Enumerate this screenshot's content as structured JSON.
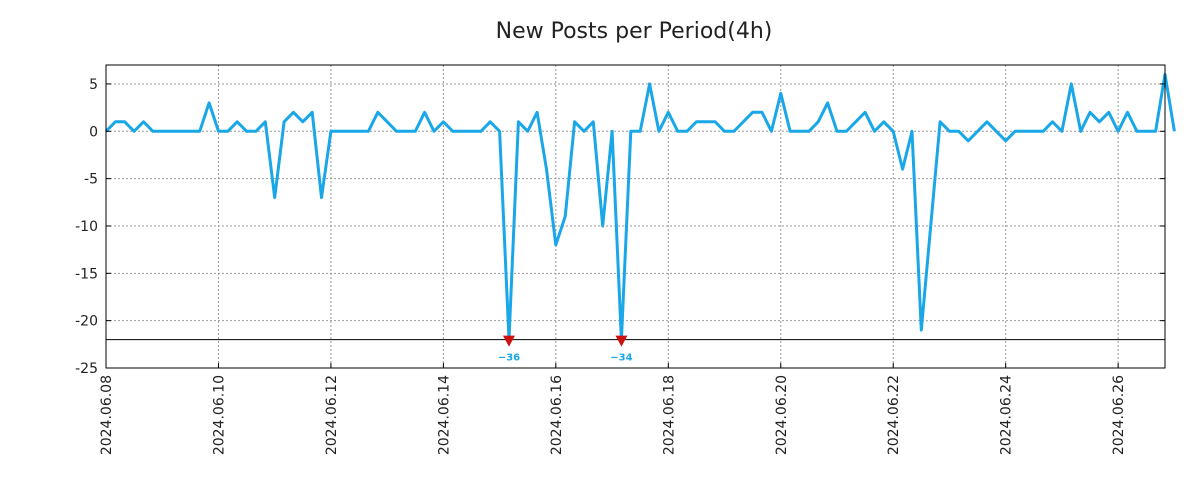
{
  "chart_data": {
    "type": "line",
    "title": "New Posts per Period(4h)",
    "xlabel": "",
    "ylabel": "",
    "ylim": [
      -25,
      7
    ],
    "yticks": [
      5,
      0,
      -5,
      -10,
      -15,
      -20,
      -25
    ],
    "clip_value": -22,
    "x_start": "2024.06.08",
    "period_hours": 4,
    "xticks": [
      {
        "label": "2024.06.08",
        "pos": 0
      },
      {
        "label": "2024.06.10",
        "pos": 12
      },
      {
        "label": "2024.06.12",
        "pos": 24
      },
      {
        "label": "2024.06.14",
        "pos": 36
      },
      {
        "label": "2024.06.16",
        "pos": 48
      },
      {
        "label": "2024.06.18",
        "pos": 60
      },
      {
        "label": "2024.06.20",
        "pos": 72
      },
      {
        "label": "2024.06.22",
        "pos": 84
      },
      {
        "label": "2024.06.24",
        "pos": 96
      },
      {
        "label": "2024.06.26",
        "pos": 108
      }
    ],
    "xlim": [
      0,
      113
    ],
    "grid": true,
    "series": [
      {
        "name": "New Posts",
        "color": "#1aa7e8",
        "values": [
          0,
          1,
          1,
          0,
          1,
          0,
          0,
          0,
          0,
          0,
          0,
          3,
          0,
          0,
          1,
          0,
          0,
          1,
          -7,
          1,
          2,
          1,
          2,
          -7,
          0,
          0,
          0,
          0,
          0,
          2,
          1,
          0,
          0,
          0,
          2,
          0,
          1,
          0,
          0,
          0,
          0,
          1,
          0,
          -36,
          1,
          0,
          2,
          -4,
          -12,
          -9,
          1,
          0,
          1,
          -10,
          0,
          -34,
          0,
          0,
          5,
          0,
          2,
          0,
          0,
          1,
          1,
          1,
          0,
          0,
          1,
          2,
          2,
          0,
          4,
          0,
          0,
          0,
          1,
          3,
          0,
          0,
          1,
          2,
          0,
          1,
          0,
          -4,
          0,
          -21,
          -10,
          1,
          0,
          0,
          -1,
          0,
          1,
          0,
          -1,
          0,
          0,
          0,
          0,
          1,
          0,
          5,
          0,
          2,
          1,
          2,
          0,
          2,
          0,
          0,
          0,
          6,
          0
        ]
      }
    ],
    "annotations": [
      {
        "pos": 43,
        "label": "−36",
        "marker_color": "#cc1111",
        "text_color": "#1aa7e8"
      },
      {
        "pos": 55,
        "label": "−34",
        "marker_color": "#cc1111",
        "text_color": "#1aa7e8"
      }
    ]
  }
}
